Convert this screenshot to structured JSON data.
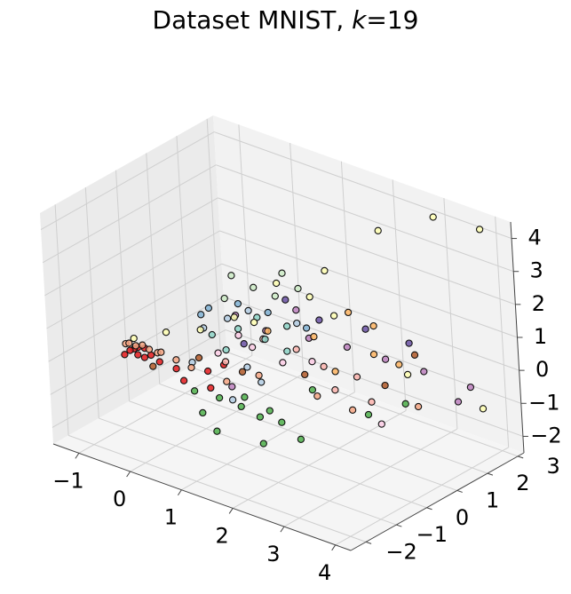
{
  "chart_data": {
    "type": "scatter",
    "title_prefix": "Dataset MNIST, ",
    "title_k": "k",
    "title_suffix": "=19",
    "x_ticks": [
      "−1",
      "0",
      "1",
      "2",
      "3",
      "4"
    ],
    "y_ticks": [
      "−2",
      "−1",
      "0",
      "1",
      "2",
      "3"
    ],
    "z_ticks": [
      "−2",
      "−1",
      "0",
      "1",
      "2",
      "3",
      "4"
    ],
    "xlim": [
      -1.5,
      4.3
    ],
    "ylim": [
      -2.5,
      3.2
    ],
    "zlim": [
      -2.5,
      4.5
    ],
    "grid": true,
    "palette": [
      "#e41a1c",
      "#f4a582",
      "#4daf4a",
      "#ffffb3",
      "#8dd3c7",
      "#fdb462",
      "#bc80bd",
      "#b3cde3",
      "#ccebc5",
      "#fbb4ae",
      "#6a51a3",
      "#fed9a6",
      "#80b1d3",
      "#b15928",
      "#fccde5",
      "#d9d9d9",
      "#ffff99",
      "#e7298a",
      "#66c2a5"
    ],
    "series": [
      {
        "name": "",
        "color": "#e41a1c",
        "points": [
          [
            -1.05,
            -0.6,
            -0.4
          ],
          [
            -1.0,
            -0.55,
            -0.35
          ],
          [
            -0.95,
            -0.5,
            -0.3
          ],
          [
            -0.9,
            -0.6,
            -0.45
          ],
          [
            -0.85,
            -0.45,
            -0.3
          ],
          [
            -0.8,
            -0.55,
            -0.5
          ],
          [
            -1.1,
            -0.7,
            -0.5
          ],
          [
            -0.7,
            -0.5,
            -0.4
          ],
          [
            -0.6,
            -0.4,
            -0.6
          ],
          [
            -0.4,
            -0.2,
            -0.8
          ],
          [
            -0.2,
            -0.3,
            -1.0
          ],
          [
            0.1,
            0.0,
            -0.7
          ],
          [
            0.3,
            0.2,
            -0.5
          ],
          [
            0.2,
            -0.1,
            -1.1
          ]
        ]
      },
      {
        "name": "",
        "color": "#f4a582",
        "points": [
          [
            -1.1,
            -0.65,
            -0.2
          ],
          [
            -1.0,
            -0.7,
            -0.1
          ],
          [
            -0.9,
            -0.65,
            -0.15
          ],
          [
            -0.8,
            -0.6,
            -0.1
          ],
          [
            -0.7,
            -0.55,
            -0.2
          ],
          [
            -0.6,
            -0.45,
            -0.3
          ],
          [
            -0.5,
            -0.5,
            -0.2
          ],
          [
            -0.3,
            -0.35,
            -0.4
          ],
          [
            -0.1,
            -0.2,
            -0.6
          ],
          [
            0.4,
            0.1,
            -0.9
          ],
          [
            0.8,
            0.5,
            -0.7
          ],
          [
            1.5,
            1.2,
            -1.3
          ],
          [
            2.0,
            1.5,
            -1.6
          ],
          [
            3.0,
            2.0,
            -1.2
          ]
        ]
      },
      {
        "name": "",
        "color": "#4daf4a",
        "points": [
          [
            0.0,
            -0.3,
            -1.2
          ],
          [
            0.3,
            0.0,
            -1.4
          ],
          [
            0.6,
            0.2,
            -1.6
          ],
          [
            0.9,
            0.3,
            -1.8
          ],
          [
            1.2,
            0.5,
            -1.9
          ],
          [
            0.4,
            -0.3,
            -2.2
          ],
          [
            1.5,
            0.6,
            -2.3
          ],
          [
            0.2,
            -0.4,
            -1.7
          ],
          [
            0.8,
            0.0,
            -1.1
          ],
          [
            1.1,
            0.3,
            -1.5
          ],
          [
            2.5,
            2.4,
            -1.6
          ],
          [
            2.0,
            2.0,
            -2.0
          ],
          [
            1.0,
            0.2,
            -2.5
          ],
          [
            1.6,
            0.9,
            -0.9
          ]
        ]
      },
      {
        "name": "",
        "color": "#ffffb3",
        "points": [
          [
            -0.9,
            -0.7,
            0.1
          ],
          [
            -0.5,
            -0.3,
            0.3
          ],
          [
            0.0,
            0.0,
            0.5
          ],
          [
            0.5,
            0.3,
            1.0
          ],
          [
            1.0,
            0.9,
            2.0
          ],
          [
            2.4,
            2.0,
            3.8
          ],
          [
            3.2,
            2.5,
            4.4
          ],
          [
            3.8,
            3.0,
            4.1
          ],
          [
            1.4,
            1.3,
            1.6
          ],
          [
            1.8,
            1.4,
            1.2
          ],
          [
            0.7,
            0.6,
            0.8
          ],
          [
            1.6,
            1.5,
            2.4
          ],
          [
            3.6,
            3.1,
            -1.5
          ],
          [
            2.7,
            2.2,
            -0.5
          ]
        ]
      },
      {
        "name": "",
        "color": "#8dd3c7",
        "points": [
          [
            0.1,
            0.2,
            0.3
          ],
          [
            0.5,
            0.4,
            0.6
          ],
          [
            0.9,
            0.6,
            0.4
          ],
          [
            1.2,
            0.8,
            0.1
          ],
          [
            0.3,
            0.3,
            -0.1
          ],
          [
            0.7,
            0.7,
            0.9
          ],
          [
            1.1,
            1.0,
            0.7
          ]
        ]
      },
      {
        "name": "",
        "color": "#fdb462",
        "points": [
          [
            1.9,
            1.7,
            1.2
          ],
          [
            2.2,
            2.0,
            0.8
          ],
          [
            1.5,
            1.2,
            0.5
          ],
          [
            2.3,
            1.8,
            0.1
          ],
          [
            0.9,
            0.7,
            0.6
          ],
          [
            2.6,
            2.1,
            -0.2
          ],
          [
            1.7,
            1.5,
            -0.6
          ]
        ]
      },
      {
        "name": "",
        "color": "#bc80bd",
        "points": [
          [
            0.4,
            0.5,
            0.9
          ],
          [
            0.8,
            0.8,
            0.5
          ],
          [
            1.4,
            1.2,
            0.4
          ],
          [
            1.9,
            1.6,
            0.2
          ],
          [
            2.4,
            2.0,
            -0.1
          ],
          [
            0.5,
            0.1,
            -1.0
          ],
          [
            1.3,
            1.0,
            1.3
          ],
          [
            2.9,
            2.4,
            -0.4
          ],
          [
            3.3,
            2.8,
            -1.3
          ],
          [
            3.5,
            2.9,
            -0.8
          ]
        ]
      },
      {
        "name": "",
        "color": "#b3cde3",
        "points": [
          [
            0.0,
            0.1,
            0.5
          ],
          [
            0.3,
            0.4,
            0.8
          ],
          [
            0.6,
            0.6,
            1.1
          ],
          [
            -0.2,
            0.0,
            -0.6
          ],
          [
            0.5,
            0.1,
            -1.4
          ],
          [
            0.9,
            0.4,
            -0.8
          ],
          [
            1.3,
            1.0,
            0.9
          ],
          [
            0.7,
            0.3,
            -0.4
          ]
        ]
      },
      {
        "name": "",
        "color": "#ccebc5",
        "points": [
          [
            0.2,
            0.5,
            1.3
          ],
          [
            0.6,
            0.8,
            1.7
          ],
          [
            1.0,
            1.1,
            2.2
          ],
          [
            0.3,
            0.6,
            2.0
          ],
          [
            0.9,
            1.0,
            1.5
          ],
          [
            1.3,
            1.1,
            1.9
          ]
        ]
      },
      {
        "name": "",
        "color": "#fbb4ae",
        "points": [
          [
            0.8,
            0.7,
            0.3
          ],
          [
            1.2,
            1.1,
            0.0
          ],
          [
            1.6,
            1.3,
            -0.4
          ],
          [
            2.0,
            1.7,
            -0.7
          ],
          [
            2.2,
            1.8,
            -1.4
          ],
          [
            0.4,
            0.1,
            -0.3
          ],
          [
            1.8,
            1.3,
            -1.0
          ]
        ]
      },
      {
        "name": "",
        "color": "#6a51a3",
        "points": [
          [
            1.1,
            1.0,
            1.5
          ],
          [
            1.5,
            1.4,
            0.9
          ],
          [
            2.1,
            1.9,
            0.7
          ],
          [
            0.6,
            0.4,
            0.2
          ],
          [
            2.7,
            2.3,
            0.4
          ]
        ]
      },
      {
        "name": "",
        "color": "#80b1d3",
        "points": [
          [
            0.0,
            0.3,
            1.0
          ],
          [
            0.4,
            0.6,
            1.2
          ],
          [
            0.8,
            0.9,
            1.0
          ],
          [
            1.3,
            1.3,
            0.6
          ],
          [
            -0.1,
            0.2,
            0.8
          ]
        ]
      },
      {
        "name": "",
        "color": "#b15928",
        "points": [
          [
            -0.8,
            -0.3,
            -0.9
          ],
          [
            0.0,
            -0.1,
            -0.3
          ],
          [
            0.6,
            0.3,
            -0.6
          ],
          [
            1.4,
            1.0,
            -0.6
          ],
          [
            2.3,
            2.1,
            -1.0
          ],
          [
            2.8,
            2.3,
            0.1
          ]
        ]
      },
      {
        "name": "",
        "color": "#fccde5",
        "points": [
          [
            0.2,
            0.2,
            -0.2
          ],
          [
            0.7,
            0.5,
            0.1
          ],
          [
            1.1,
            0.8,
            -0.3
          ],
          [
            1.5,
            1.1,
            -0.2
          ],
          [
            0.5,
            0.4,
            0.4
          ],
          [
            2.5,
            1.6,
            -1.8
          ]
        ]
      }
    ]
  }
}
